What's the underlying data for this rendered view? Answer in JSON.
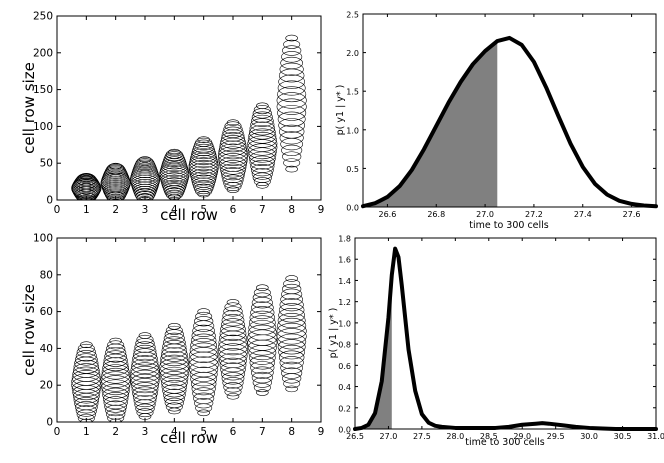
{
  "chart_data": [
    {
      "id": "A",
      "type": "scatter",
      "xlabel": "cell row",
      "ylabel": "cell row size",
      "xlim": [
        0,
        9
      ],
      "ylim": [
        0,
        250
      ],
      "xticks": [
        "0",
        "1",
        "2",
        "3",
        "4",
        "5",
        "6",
        "7",
        "8",
        "9"
      ],
      "yticks": [
        "0",
        "50",
        "100",
        "150",
        "200",
        "250"
      ],
      "rows": [
        {
          "x": 1,
          "min": 0,
          "max": 32
        },
        {
          "x": 2,
          "min": 0,
          "max": 46
        },
        {
          "x": 3,
          "min": 0,
          "max": 55
        },
        {
          "x": 4,
          "min": 4,
          "max": 65
        },
        {
          "x": 5,
          "min": 8,
          "max": 82
        },
        {
          "x": 6,
          "min": 14,
          "max": 105
        },
        {
          "x": 7,
          "min": 20,
          "max": 128
        },
        {
          "x": 8,
          "min": 42,
          "max": 220
        }
      ]
    },
    {
      "id": "B",
      "type": "area",
      "xlabel": "time to 300 cells",
      "ylabel": "p( y1 | y* )",
      "xlim": [
        26.5,
        27.7
      ],
      "ylim": [
        0,
        2.5
      ],
      "xticks": [
        "26.6",
        "26.8",
        "27.0",
        "27.2",
        "27.4",
        "27.6"
      ],
      "yticks": [
        "0.0",
        "0.5",
        "1.0",
        "1.5",
        "2.0",
        "2.5"
      ],
      "shade_to": 27.05,
      "x": [
        26.5,
        26.55,
        26.6,
        26.65,
        26.7,
        26.75,
        26.8,
        26.85,
        26.9,
        26.95,
        27.0,
        27.05,
        27.1,
        27.15,
        27.2,
        27.25,
        27.3,
        27.35,
        27.4,
        27.45,
        27.5,
        27.55,
        27.6,
        27.65,
        27.7
      ],
      "y": [
        0.01,
        0.05,
        0.13,
        0.27,
        0.48,
        0.75,
        1.05,
        1.35,
        1.62,
        1.85,
        2.02,
        2.15,
        2.19,
        2.1,
        1.88,
        1.55,
        1.18,
        0.82,
        0.52,
        0.3,
        0.16,
        0.08,
        0.04,
        0.02,
        0.01
      ]
    },
    {
      "id": "C",
      "type": "scatter",
      "xlabel": "cell row",
      "ylabel": "cell row size",
      "xlim": [
        0,
        9
      ],
      "ylim": [
        0,
        100
      ],
      "xticks": [
        "0",
        "1",
        "2",
        "3",
        "4",
        "5",
        "6",
        "7",
        "8",
        "9"
      ],
      "yticks": [
        "0",
        "20",
        "40",
        "60",
        "80",
        "100"
      ],
      "rows": [
        {
          "x": 1,
          "min": 0,
          "max": 42
        },
        {
          "x": 2,
          "min": 0,
          "max": 44
        },
        {
          "x": 3,
          "min": 3,
          "max": 47
        },
        {
          "x": 4,
          "min": 6,
          "max": 52
        },
        {
          "x": 5,
          "min": 5,
          "max": 60
        },
        {
          "x": 6,
          "min": 14,
          "max": 65
        },
        {
          "x": 7,
          "min": 16,
          "max": 73
        },
        {
          "x": 8,
          "min": 18,
          "max": 78
        }
      ]
    },
    {
      "id": "D",
      "type": "area",
      "xlabel": "time to 300 cells",
      "ylabel": "p( y1 | y* )",
      "xlim": [
        26.5,
        31.0
      ],
      "ylim": [
        0,
        1.8
      ],
      "xticks": [
        "26.5",
        "27.0",
        "27.5",
        "28.0",
        "28.5",
        "29.0",
        "29.5",
        "30.0",
        "30.5",
        "31.0"
      ],
      "yticks": [
        "0.0",
        "0.2",
        "0.4",
        "0.6",
        "0.8",
        "1.0",
        "1.2",
        "1.4",
        "1.6",
        "1.8"
      ],
      "shade_to": 27.05,
      "x": [
        26.5,
        26.6,
        26.7,
        26.8,
        26.9,
        27.0,
        27.05,
        27.1,
        27.15,
        27.2,
        27.3,
        27.4,
        27.5,
        27.6,
        27.7,
        27.8,
        28.0,
        28.2,
        28.4,
        28.6,
        28.8,
        29.0,
        29.2,
        29.3,
        29.4,
        29.6,
        29.8,
        30.0,
        30.2,
        30.4,
        31.0
      ],
      "y": [
        0.0,
        0.01,
        0.04,
        0.15,
        0.45,
        1.05,
        1.45,
        1.7,
        1.62,
        1.35,
        0.75,
        0.36,
        0.14,
        0.06,
        0.03,
        0.02,
        0.01,
        0.01,
        0.01,
        0.01,
        0.02,
        0.04,
        0.05,
        0.055,
        0.05,
        0.035,
        0.02,
        0.01,
        0.005,
        0.0,
        0.0
      ]
    }
  ]
}
